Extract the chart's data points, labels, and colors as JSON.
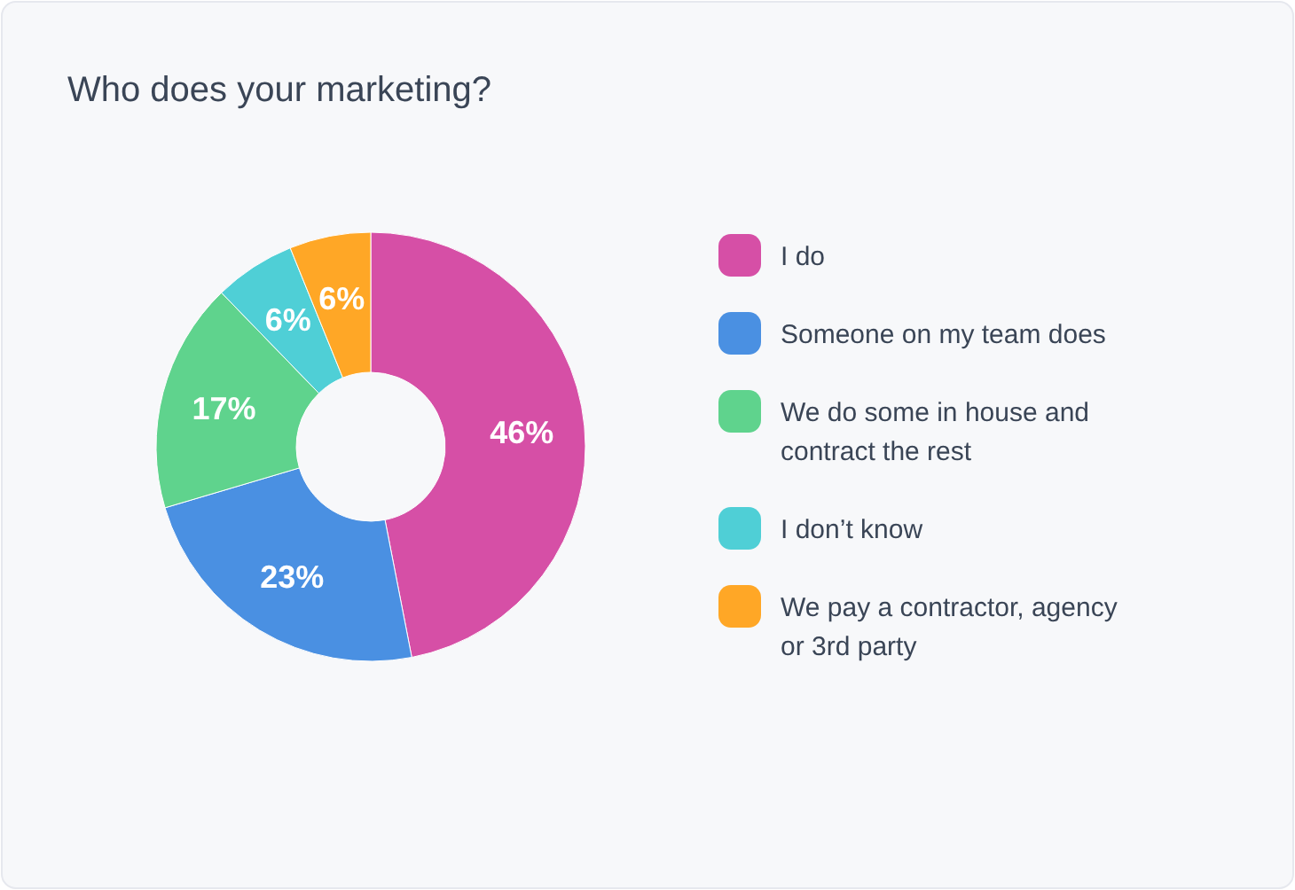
{
  "chart_data": {
    "type": "donut",
    "title": "Who does your marketing?",
    "categories": [
      "I do",
      "Someone on my team does",
      "We do some in house and contract the rest",
      "I don’t know",
      "We pay a contractor, agency or 3rd party"
    ],
    "values": [
      46,
      23,
      17,
      6,
      6
    ],
    "colors": [
      "#d64fa6",
      "#4a90e2",
      "#5fd38d",
      "#4fcfd6",
      "#ffa726"
    ],
    "value_labels": [
      "46%",
      "23%",
      "17%",
      "6%",
      "6%"
    ],
    "legend": "right"
  }
}
